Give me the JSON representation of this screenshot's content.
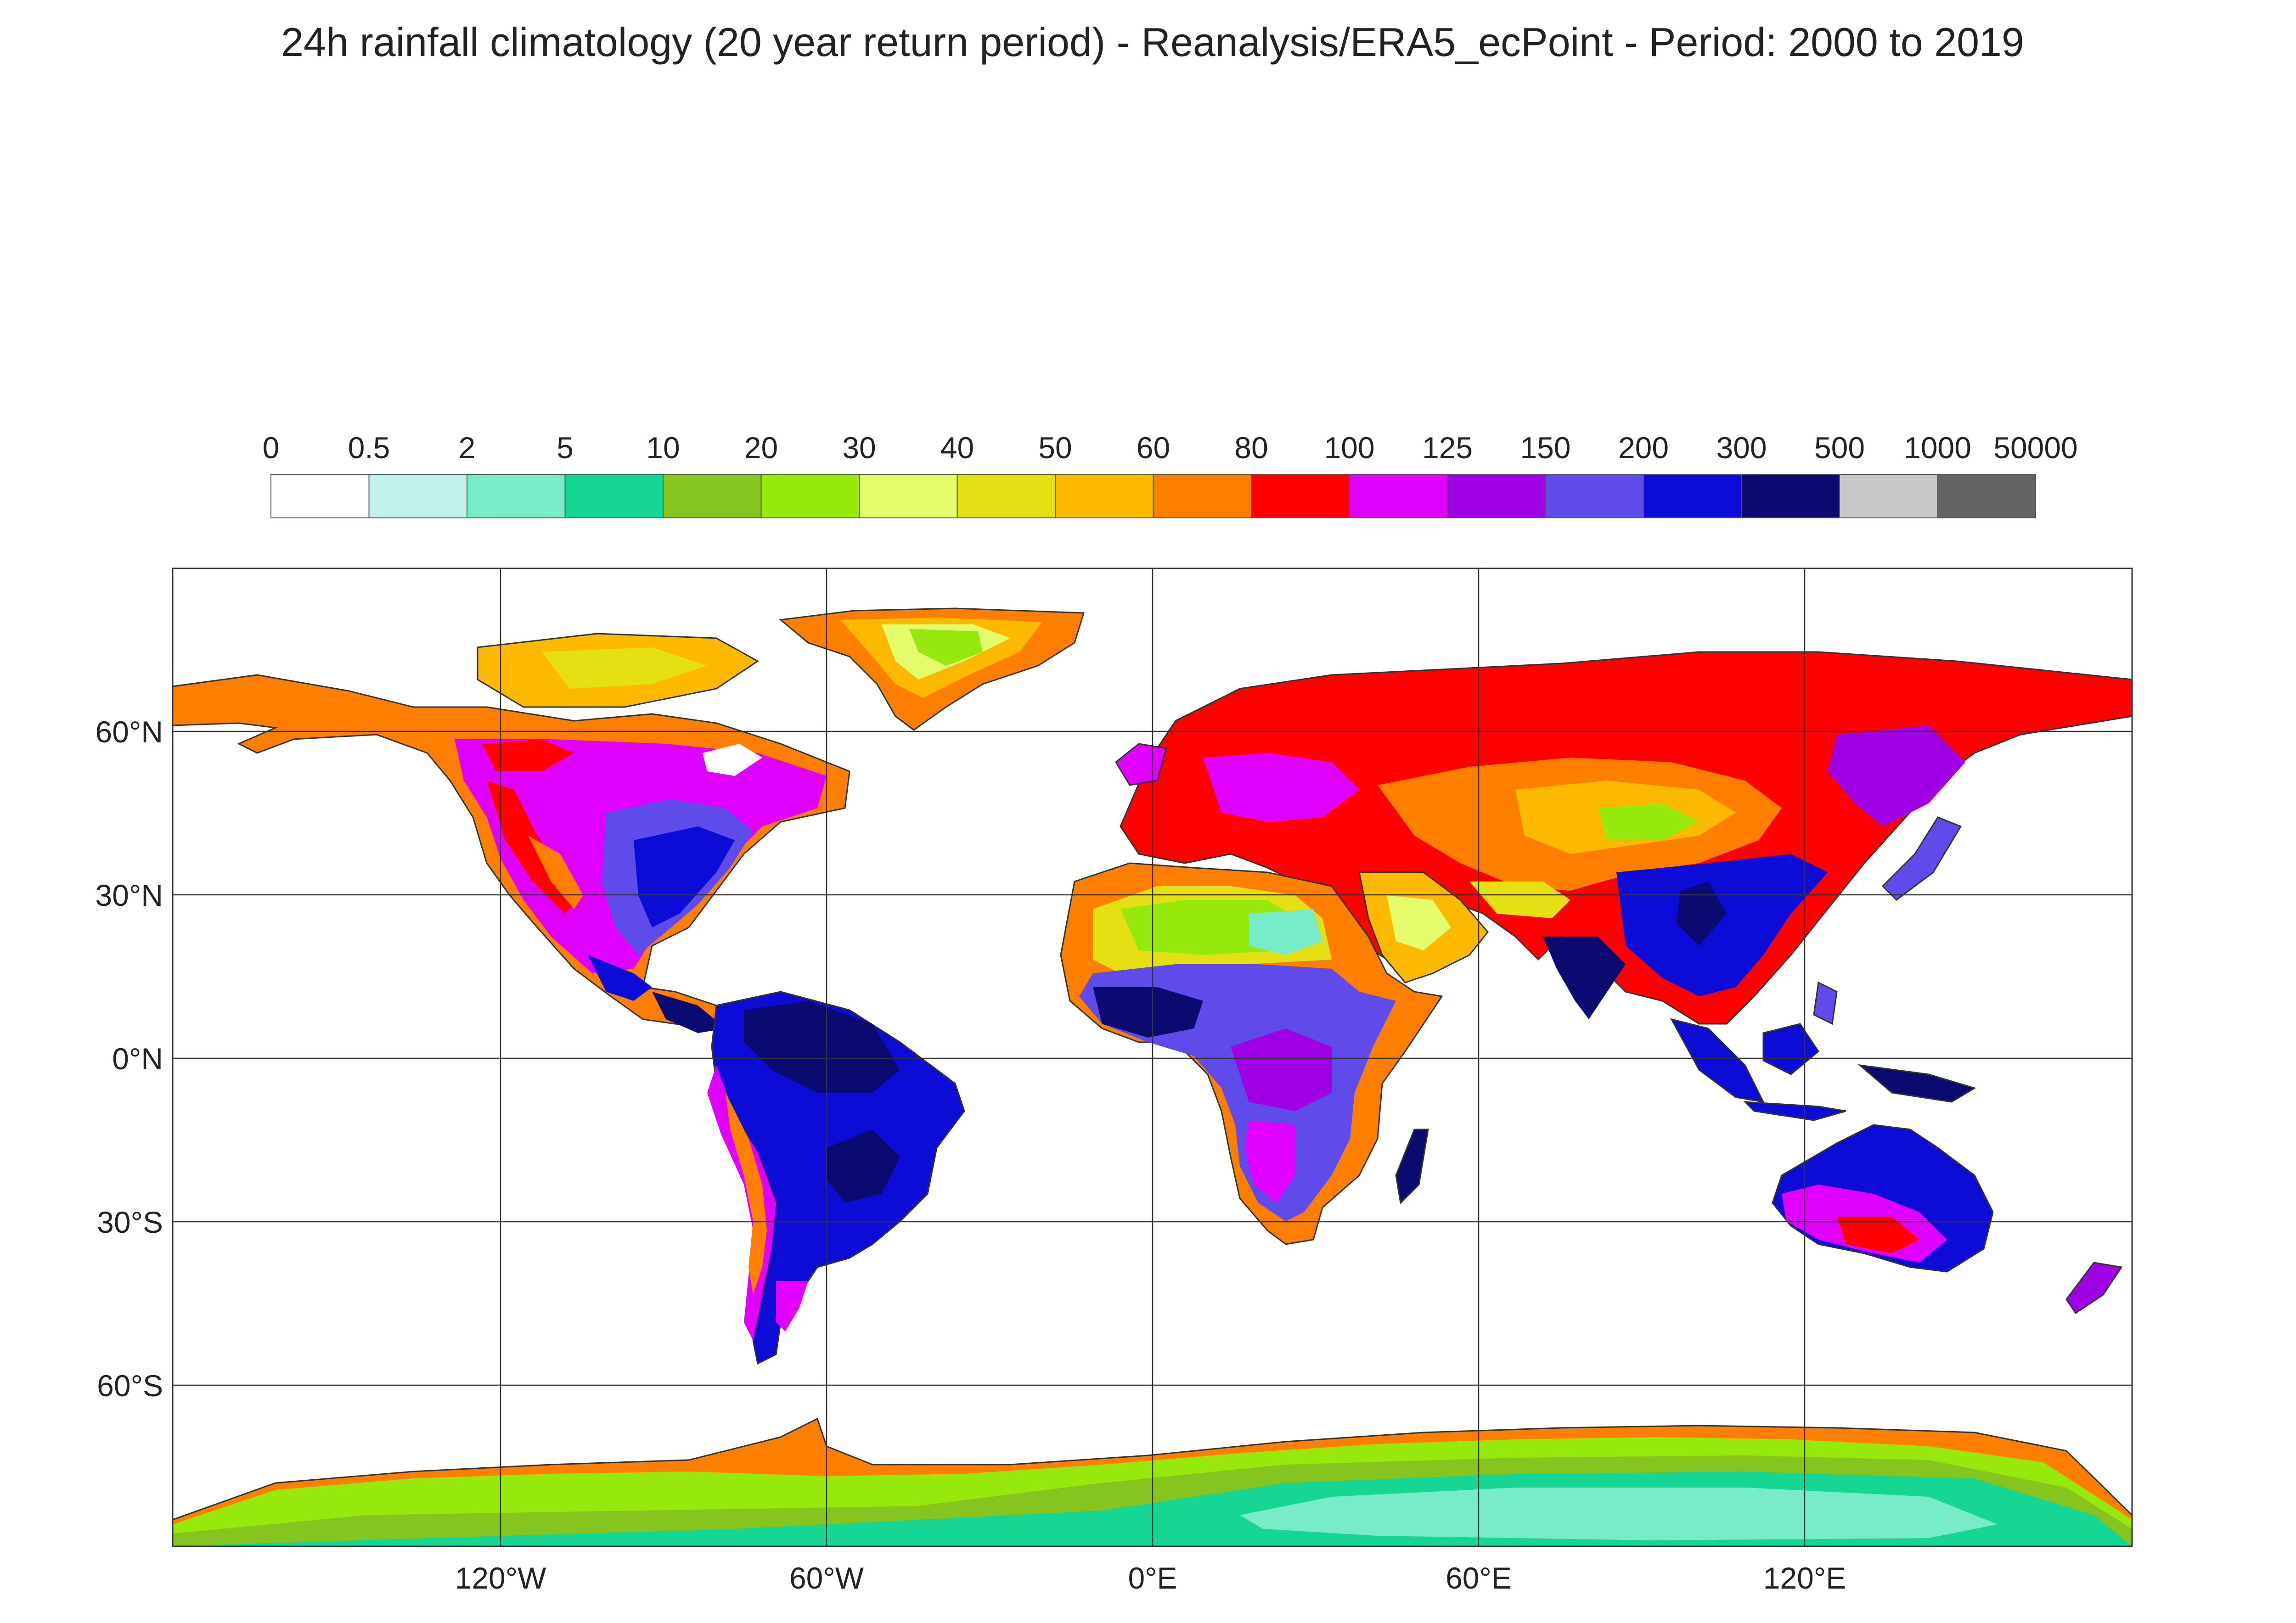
{
  "title": "24h rainfall climatology (20 year return period) - Reanalysis/ERA5_ecPoint - Period: 2000 to 2019",
  "colorbar": {
    "labels": [
      "0",
      "0.5",
      "2",
      "5",
      "10",
      "20",
      "30",
      "40",
      "50",
      "60",
      "80",
      "100",
      "125",
      "150",
      "200",
      "300",
      "500",
      "1000",
      "50000"
    ],
    "colors": [
      "#ffffff",
      "#c2f2ec",
      "#78ecc8",
      "#17d693",
      "#86c41f",
      "#97e80c",
      "#e4fb6b",
      "#e4e014",
      "#fdb900",
      "#fe7f00",
      "#ff0000",
      "#e000ff",
      "#9f00e4",
      "#5f4be9",
      "#0c0cd6",
      "#0a0a70",
      "#c8c8c8",
      "#636363"
    ]
  },
  "map": {
    "lon_labels": [
      "120°W",
      "60°W",
      "0°E",
      "60°E",
      "120°E"
    ],
    "lat_labels": [
      "60°N",
      "30°N",
      "0°N",
      "30°S",
      "60°S"
    ],
    "gridlines": "on",
    "projection": "equirectangular"
  }
}
